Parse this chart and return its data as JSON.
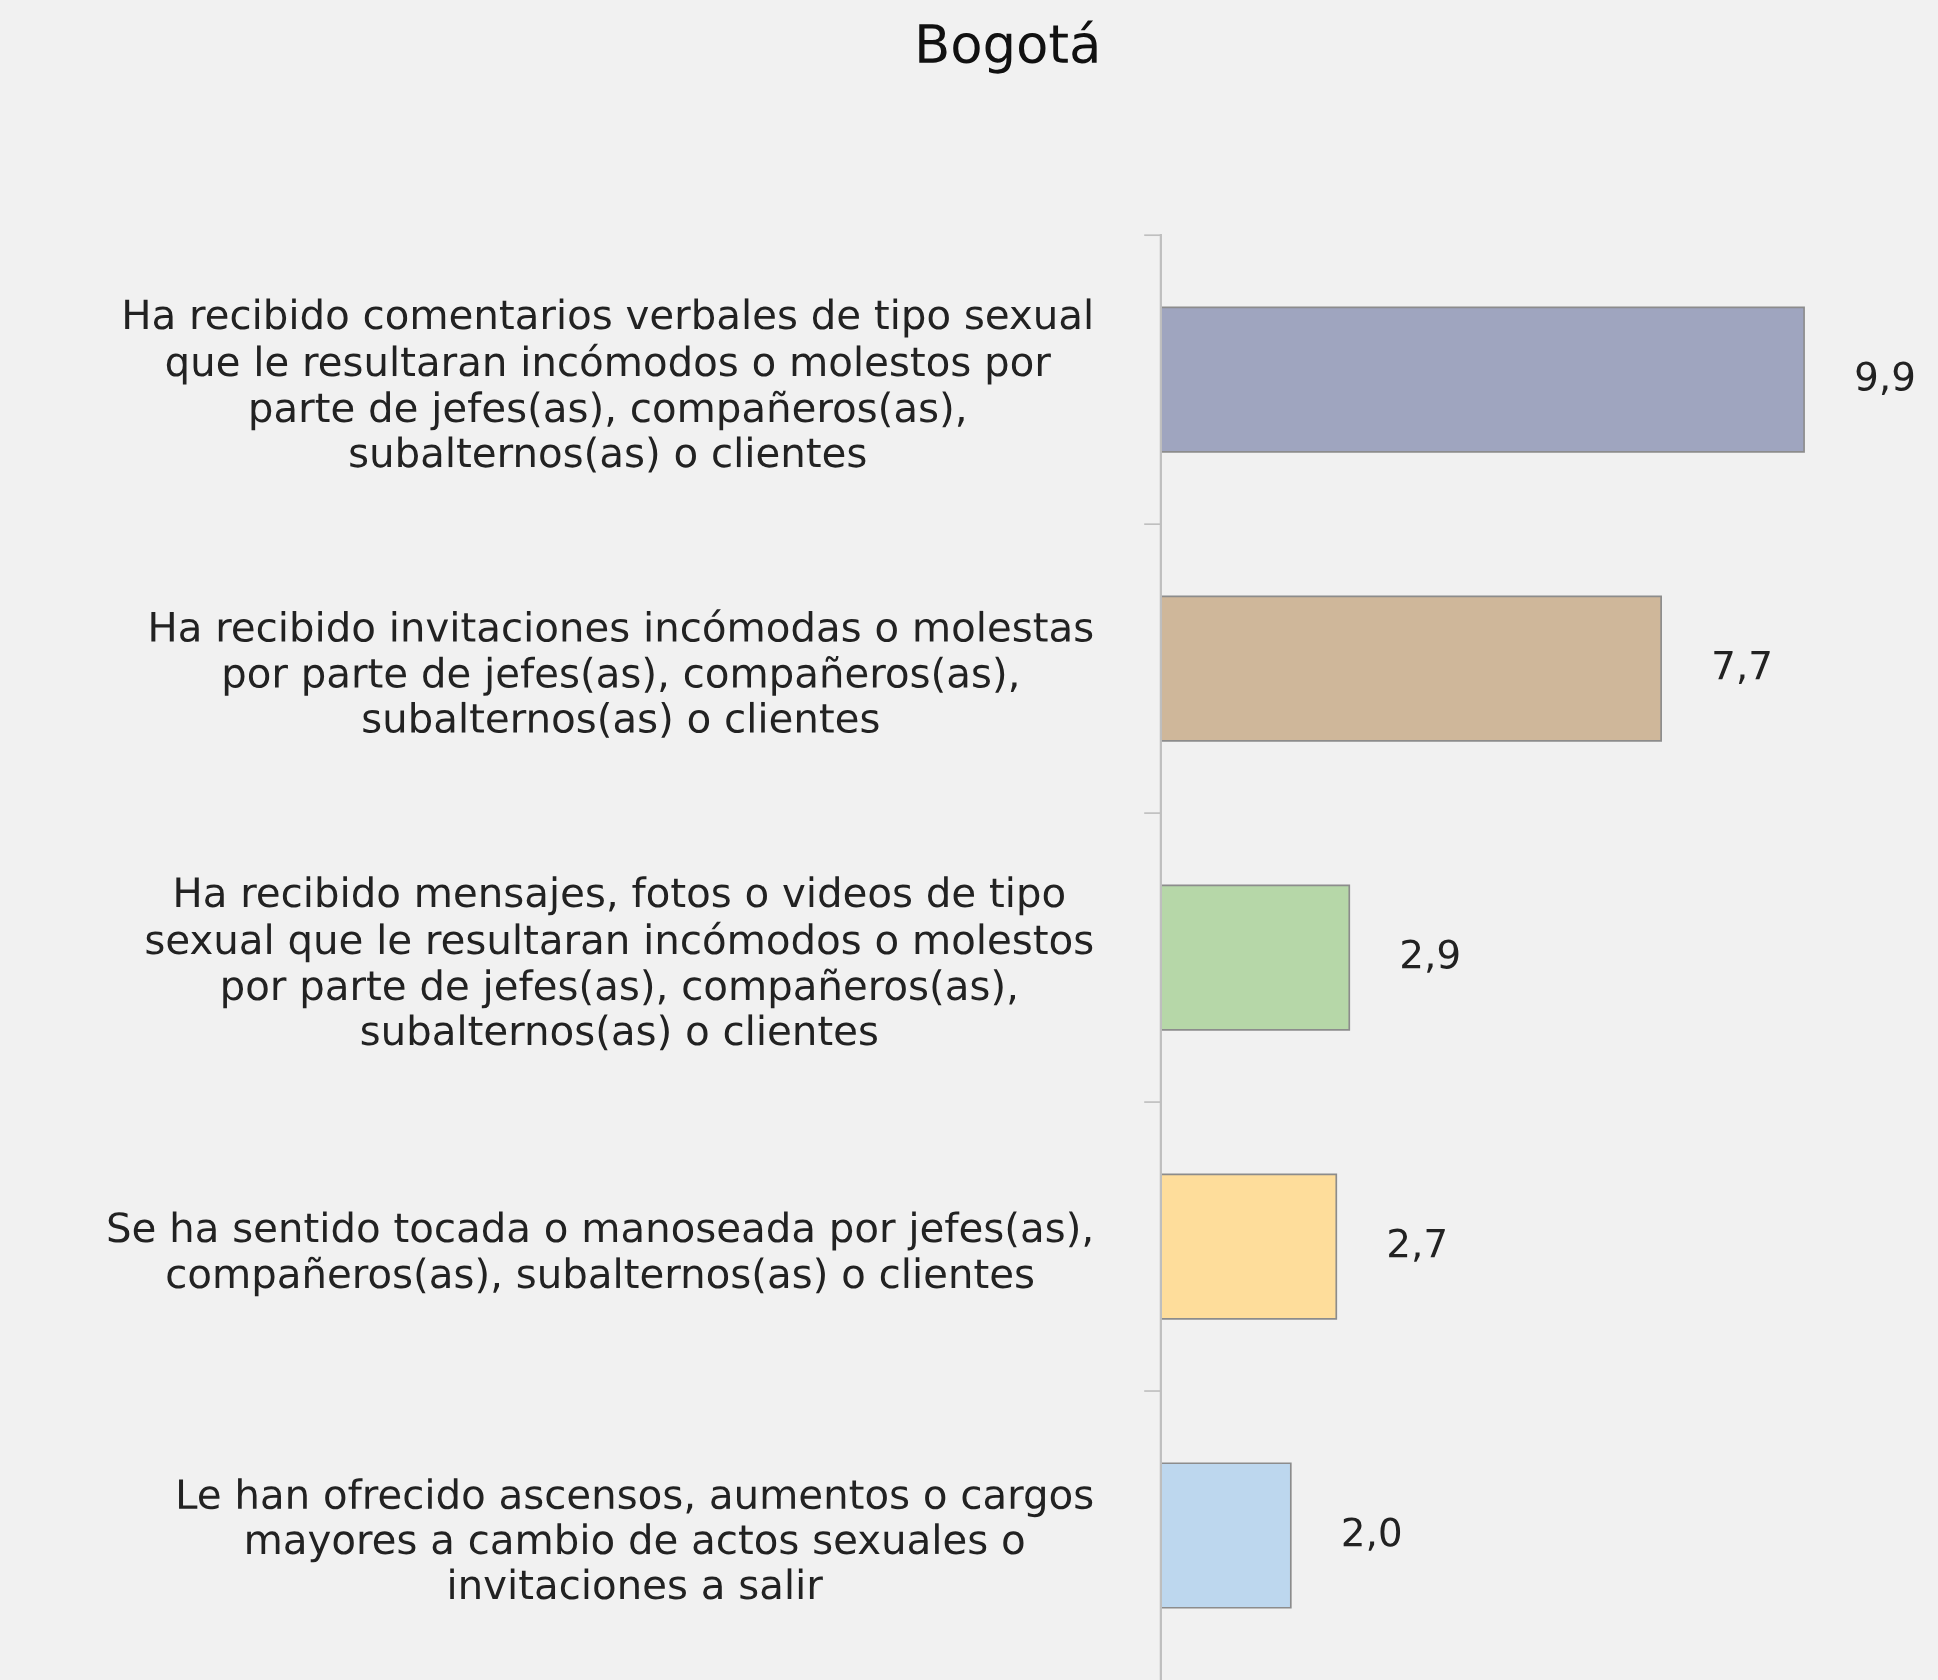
{
  "chart_data": {
    "type": "bar",
    "orientation": "horizontal",
    "title": "Bogotá",
    "categories": [
      "Ha recibido comentarios verbales de tipo sexual\nque le resultaran incómodos o molestos por\nparte de jefes(as), compañeros(as),\nsubalternos(as) o clientes",
      "Ha recibido invitaciones incómodas o molestas\npor parte de jefes(as), compañeros(as),\nsubalternos(as) o clientes",
      "Ha recibido mensajes, fotos o videos de tipo\nsexual que le resultaran incómodos o molestos\npor parte de jefes(as), compañeros(as),\nsubalternos(as) o clientes",
      "Se ha sentido tocada o manoseada por jefes(as),\ncompañeros(as), subalternos(as) o clientes",
      "Le han ofrecido ascensos, aumentos o cargos\nmayores a cambio de actos sexuales o\ninvitaciones a salir"
    ],
    "values": [
      9.9,
      7.7,
      2.9,
      2.7,
      2.0
    ],
    "colors": [
      "#9fa5bf",
      "#cfb79a",
      "#b6d7a8",
      "#fedd9b",
      "#bdd7ee"
    ],
    "value_labels": [
      "9,9",
      "7,7",
      "2,9",
      "2,7",
      "2,0"
    ],
    "tick_labels": "y",
    "grid": false,
    "legend": false
  }
}
